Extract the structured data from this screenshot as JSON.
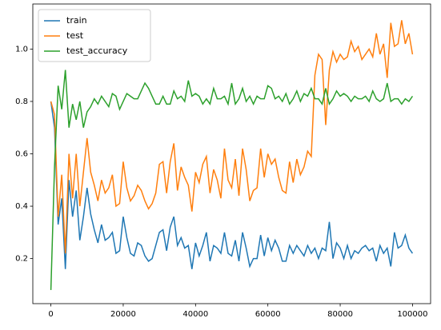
{
  "chart_data": {
    "type": "line",
    "x": [
      0,
      1000,
      2000,
      3000,
      4000,
      5000,
      6000,
      7000,
      8000,
      9000,
      10000,
      11000,
      12000,
      13000,
      14000,
      15000,
      16000,
      17000,
      18000,
      19000,
      20000,
      21000,
      22000,
      23000,
      24000,
      25000,
      26000,
      27000,
      28000,
      29000,
      30000,
      31000,
      32000,
      33000,
      34000,
      35000,
      36000,
      37000,
      38000,
      39000,
      40000,
      41000,
      42000,
      43000,
      44000,
      45000,
      46000,
      47000,
      48000,
      49000,
      50000,
      51000,
      52000,
      53000,
      54000,
      55000,
      56000,
      57000,
      58000,
      59000,
      60000,
      61000,
      62000,
      63000,
      64000,
      65000,
      66000,
      67000,
      68000,
      69000,
      70000,
      71000,
      72000,
      73000,
      74000,
      75000,
      76000,
      77000,
      78000,
      79000,
      80000,
      81000,
      82000,
      83000,
      84000,
      85000,
      86000,
      87000,
      88000,
      89000,
      90000,
      91000,
      92000,
      93000,
      94000,
      95000,
      96000,
      97000,
      98000,
      99000,
      100000
    ],
    "series": [
      {
        "name": "train",
        "color": "#1f77b4",
        "values": [
          0.8,
          0.7,
          0.33,
          0.43,
          0.16,
          0.5,
          0.36,
          0.46,
          0.27,
          0.36,
          0.47,
          0.37,
          0.31,
          0.26,
          0.33,
          0.27,
          0.28,
          0.3,
          0.22,
          0.23,
          0.36,
          0.28,
          0.22,
          0.21,
          0.26,
          0.25,
          0.21,
          0.19,
          0.2,
          0.25,
          0.3,
          0.31,
          0.23,
          0.32,
          0.36,
          0.25,
          0.28,
          0.24,
          0.25,
          0.16,
          0.26,
          0.21,
          0.25,
          0.3,
          0.19,
          0.25,
          0.24,
          0.22,
          0.3,
          0.22,
          0.21,
          0.27,
          0.19,
          0.3,
          0.24,
          0.17,
          0.2,
          0.2,
          0.29,
          0.21,
          0.28,
          0.23,
          0.27,
          0.24,
          0.19,
          0.19,
          0.25,
          0.22,
          0.25,
          0.23,
          0.21,
          0.25,
          0.22,
          0.24,
          0.2,
          0.24,
          0.23,
          0.34,
          0.2,
          0.26,
          0.24,
          0.2,
          0.25,
          0.2,
          0.23,
          0.22,
          0.24,
          0.25,
          0.23,
          0.24,
          0.19,
          0.25,
          0.22,
          0.24,
          0.17,
          0.3,
          0.24,
          0.25,
          0.29,
          0.24,
          0.22
        ]
      },
      {
        "name": "test",
        "color": "#ff7f0e",
        "values": [
          0.8,
          0.75,
          0.36,
          0.52,
          0.22,
          0.6,
          0.43,
          0.6,
          0.4,
          0.53,
          0.66,
          0.53,
          0.48,
          0.42,
          0.5,
          0.45,
          0.47,
          0.52,
          0.4,
          0.41,
          0.57,
          0.47,
          0.42,
          0.44,
          0.48,
          0.46,
          0.42,
          0.39,
          0.41,
          0.45,
          0.56,
          0.57,
          0.45,
          0.57,
          0.64,
          0.46,
          0.55,
          0.51,
          0.48,
          0.38,
          0.53,
          0.49,
          0.56,
          0.59,
          0.45,
          0.54,
          0.5,
          0.43,
          0.62,
          0.5,
          0.47,
          0.58,
          0.44,
          0.62,
          0.54,
          0.42,
          0.46,
          0.47,
          0.62,
          0.51,
          0.6,
          0.56,
          0.58,
          0.51,
          0.46,
          0.45,
          0.57,
          0.49,
          0.58,
          0.52,
          0.55,
          0.61,
          0.59,
          0.9,
          0.98,
          0.96,
          0.71,
          0.92,
          0.99,
          0.95,
          0.98,
          0.96,
          0.97,
          1.03,
          0.99,
          1.01,
          0.96,
          0.98,
          1.0,
          0.97,
          1.06,
          0.98,
          1.02,
          0.89,
          1.1,
          1.01,
          1.02,
          1.11,
          1.02,
          1.06,
          0.98
        ]
      },
      {
        "name": "test_accuracy",
        "color": "#2ca02c",
        "values": [
          0.08,
          0.55,
          0.86,
          0.77,
          0.92,
          0.7,
          0.79,
          0.73,
          0.8,
          0.7,
          0.76,
          0.78,
          0.81,
          0.79,
          0.82,
          0.8,
          0.78,
          0.83,
          0.82,
          0.77,
          0.8,
          0.83,
          0.82,
          0.81,
          0.81,
          0.84,
          0.87,
          0.85,
          0.82,
          0.79,
          0.79,
          0.82,
          0.79,
          0.79,
          0.84,
          0.81,
          0.82,
          0.8,
          0.88,
          0.82,
          0.83,
          0.82,
          0.79,
          0.81,
          0.79,
          0.85,
          0.81,
          0.81,
          0.82,
          0.79,
          0.87,
          0.79,
          0.81,
          0.85,
          0.8,
          0.82,
          0.79,
          0.82,
          0.81,
          0.81,
          0.86,
          0.85,
          0.81,
          0.82,
          0.8,
          0.83,
          0.79,
          0.81,
          0.84,
          0.8,
          0.83,
          0.82,
          0.85,
          0.81,
          0.81,
          0.79,
          0.85,
          0.79,
          0.81,
          0.84,
          0.82,
          0.83,
          0.82,
          0.8,
          0.82,
          0.81,
          0.81,
          0.82,
          0.8,
          0.84,
          0.81,
          0.8,
          0.81,
          0.87,
          0.8,
          0.81,
          0.81,
          0.79,
          0.81,
          0.8,
          0.82
        ]
      }
    ],
    "xlim": [
      -5000,
      105000
    ],
    "xticks": [
      0,
      20000,
      40000,
      60000,
      80000,
      100000
    ],
    "ylim": [
      0.028,
      1.172
    ],
    "yticks": [
      0.2,
      0.4,
      0.6,
      0.8,
      {
        "value": 1,
        "label": "1.0"
      }
    ],
    "grid": false,
    "legend": "upper left"
  }
}
